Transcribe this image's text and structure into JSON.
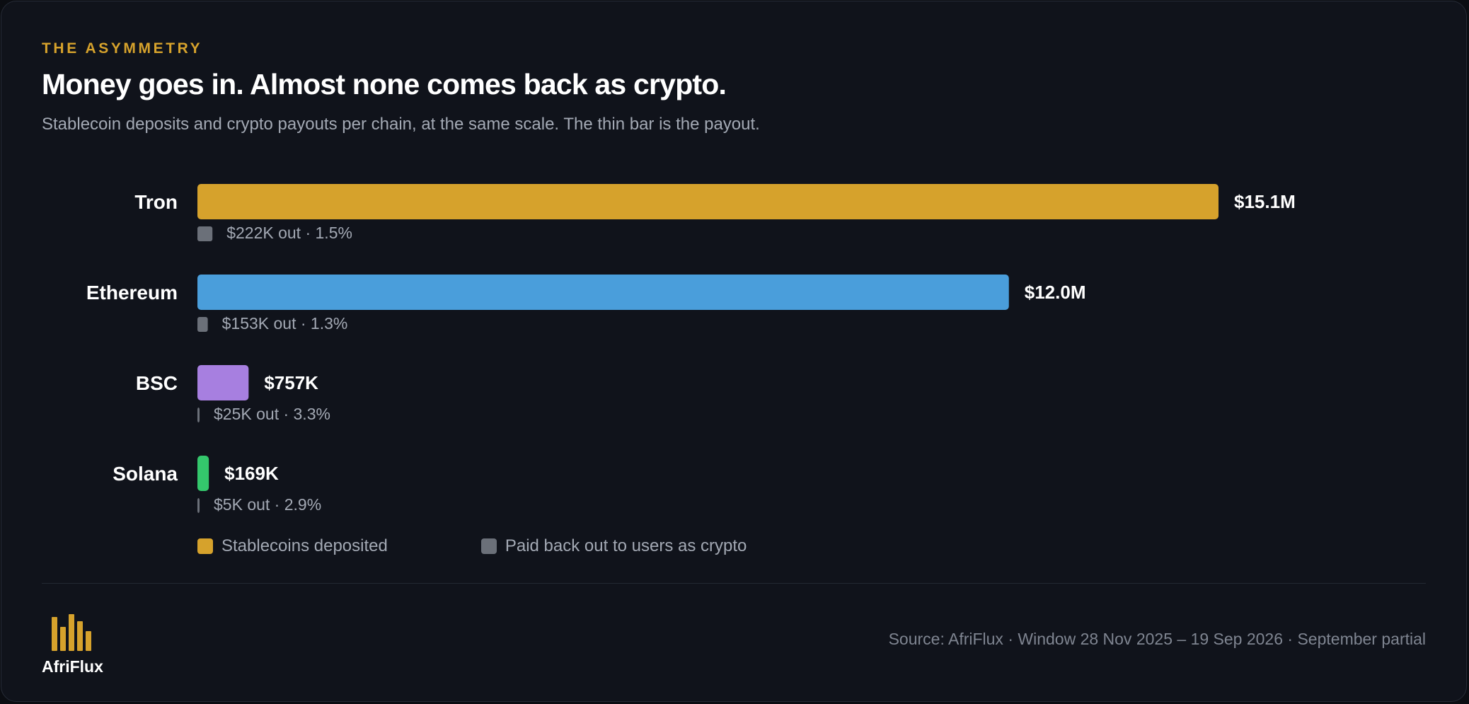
{
  "header": {
    "eyebrow": "THE ASYMMETRY",
    "title": "Money goes in. Almost none comes back as crypto.",
    "subtitle": "Stablecoin deposits and crypto payouts per chain, at the same scale. The thin bar is the payout."
  },
  "chart_data": {
    "type": "bar",
    "orientation": "horizontal",
    "categories": [
      "Tron",
      "Ethereum",
      "BSC",
      "Solana"
    ],
    "series": [
      {
        "name": "Stablecoins deposited",
        "values": [
          15100000,
          12000000,
          757000,
          169000
        ],
        "value_labels": [
          "$15.1M",
          "$12.0M",
          "$757K",
          "$169K"
        ],
        "colors": [
          "#d6a22c",
          "#4a9edb",
          "#a77fe0",
          "#34c76c"
        ]
      },
      {
        "name": "Paid back out to users as crypto",
        "values": [
          222000,
          153000,
          25000,
          5000
        ],
        "value_labels": [
          "$222K out · 1.5%",
          "$153K out · 1.3%",
          "$25K out · 3.3%",
          "$5K out · 2.9%"
        ],
        "color": "#6b7079"
      }
    ],
    "shared_scale": true
  },
  "legend": {
    "deposited": "Stablecoins deposited",
    "paid_out": "Paid back out to users as crypto",
    "deposited_color": "#d6a22c",
    "paid_out_color": "#6b7079"
  },
  "footer": {
    "brand": "AfriFlux",
    "brand_color": "#d6a22c",
    "logo_icon": "bar-chart-logo-icon",
    "source": "Source: AfriFlux · Window 28 Nov 2025 – 19 Sep 2026 · September partial"
  }
}
